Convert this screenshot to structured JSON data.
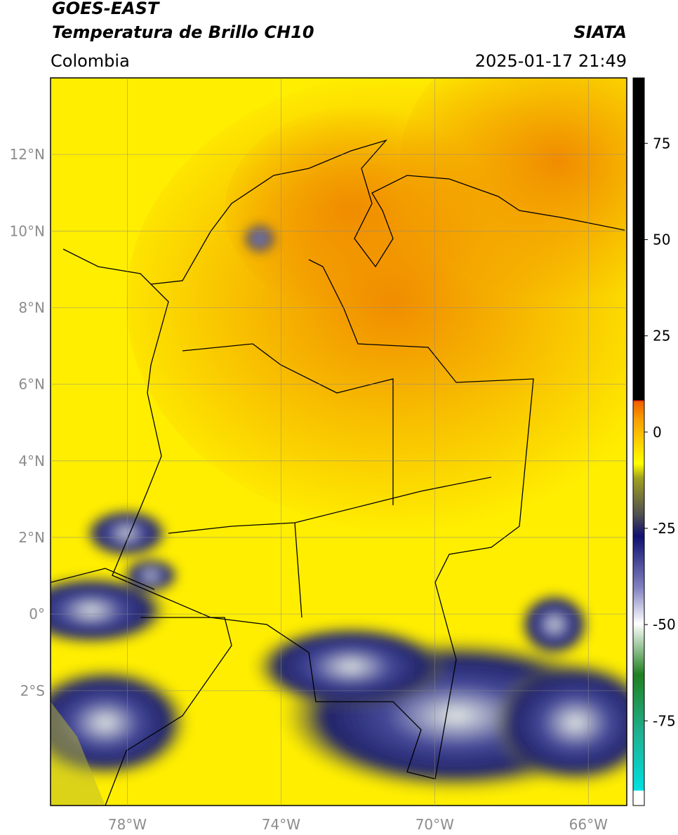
{
  "header": {
    "title": "GOES-EAST",
    "subtitle": "Temperatura de Brillo CH10",
    "source": "SIATA",
    "region": "Colombia",
    "datetime": "2025-01-17 21:49"
  },
  "map": {
    "lonlim": [
      -80,
      -65
    ],
    "latlim": [
      -5,
      14
    ],
    "lon_ticks": [
      {
        "value": -78,
        "label": "78°W"
      },
      {
        "value": -74,
        "label": "74°W"
      },
      {
        "value": -70,
        "label": "70°W"
      },
      {
        "value": -66,
        "label": "66°W"
      }
    ],
    "lat_ticks": [
      {
        "value": 12,
        "label": "12°N"
      },
      {
        "value": 10,
        "label": "10°N"
      },
      {
        "value": 8,
        "label": "8°N"
      },
      {
        "value": 6,
        "label": "6°N"
      },
      {
        "value": 4,
        "label": "4°N"
      },
      {
        "value": 2,
        "label": "2°N"
      },
      {
        "value": 0,
        "label": "0°"
      },
      {
        "value": -2,
        "label": "2°S"
      }
    ],
    "grid": true
  },
  "colorbar": {
    "lim": [
      -97,
      92
    ],
    "ticks": [
      75,
      50,
      25,
      0,
      -25,
      -50,
      -75
    ]
  }
}
